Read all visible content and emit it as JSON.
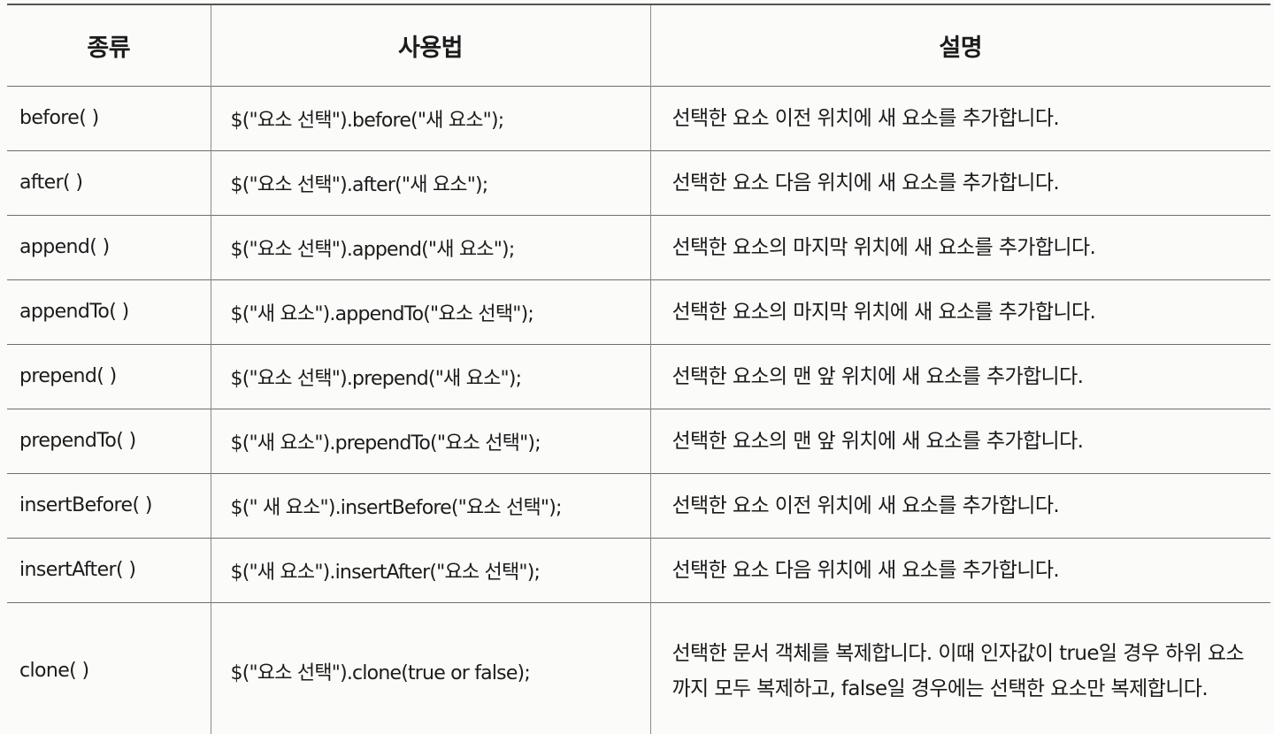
{
  "table": {
    "headers": {
      "type": "종류",
      "usage": "사용법",
      "description": "설명"
    },
    "rows": [
      {
        "type": "before( )",
        "usage": "$(\"요소 선택\").before(\"새 요소\");",
        "description": "선택한 요소 이전 위치에 새 요소를 추가합니다."
      },
      {
        "type": "after( )",
        "usage": "$(\"요소 선택\").after(\"새 요소\");",
        "description": "선택한 요소 다음 위치에 새 요소를 추가합니다."
      },
      {
        "type": "append( )",
        "usage": "$(\"요소 선택\").append(\"새 요소\");",
        "description": "선택한 요소의 마지막 위치에 새 요소를 추가합니다."
      },
      {
        "type": "appendTo( )",
        "usage": "$(\"새 요소\").appendTo(\"요소 선택\");",
        "description": "선택한 요소의 마지막 위치에 새 요소를 추가합니다."
      },
      {
        "type": "prepend( )",
        "usage": "$(\"요소 선택\").prepend(\"새 요소\");",
        "description": "선택한 요소의 맨 앞 위치에 새 요소를 추가합니다."
      },
      {
        "type": "prependTo( )",
        "usage": "$(\"새 요소\").prependTo(\"요소 선택\");",
        "description": "선택한 요소의 맨 앞 위치에 새 요소를 추가합니다."
      },
      {
        "type": "insertBefore( )",
        "usage": "$(\" 새 요소\").insertBefore(\"요소 선택\");",
        "description": "선택한 요소 이전 위치에 새 요소를 추가합니다."
      },
      {
        "type": "insertAfter( )",
        "usage": "$(\"새 요소\").insertAfter(\"요소 선택\");",
        "description": "선택한 요소 다음 위치에 새 요소를 추가합니다."
      },
      {
        "type": "clone( )",
        "usage": "$(\"요소 선택\").clone(true or false);",
        "description": "선택한 문서 객체를 복제합니다. 이때 인자값이 true일 경우 하위 요소까지 모두 복제하고, false일 경우에는 선택한 요소만 복제합니다."
      }
    ]
  }
}
